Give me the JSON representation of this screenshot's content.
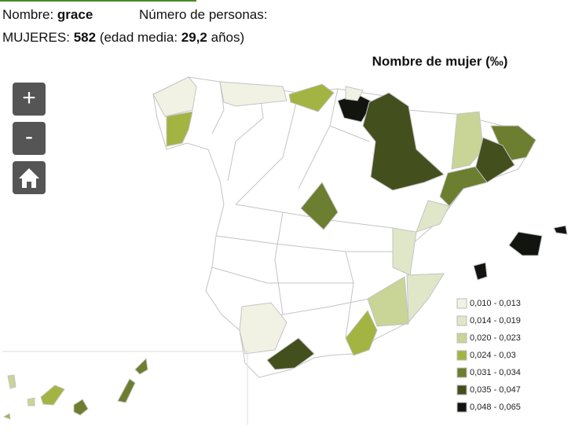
{
  "header": {
    "name_label": "Nombre:",
    "name": "grace",
    "persons_label": "Número de personas:",
    "women_label": "MUJERES:",
    "women_count": "582",
    "age_label": "(edad media:",
    "age": "29,2",
    "age_unit": "años)"
  },
  "map": {
    "title": "Nombre de mujer (‰)",
    "legend": [
      {
        "label": "0,010 - 0,013",
        "color": "#f1f2e4"
      },
      {
        "label": "0,014 - 0,019",
        "color": "#e0e7c8"
      },
      {
        "label": "0,020 - 0,023",
        "color": "#c8d596"
      },
      {
        "label": "0,024 - 0,03",
        "color": "#a3b442"
      },
      {
        "label": "0,031 - 0,034",
        "color": "#6c7e2f"
      },
      {
        "label": "0,035 - 0,047",
        "color": "#434f1d"
      },
      {
        "label": "0,048 - 0,065",
        "color": "#121410"
      }
    ]
  },
  "controls": {
    "zoom_in": "+",
    "zoom_out": "-"
  }
}
